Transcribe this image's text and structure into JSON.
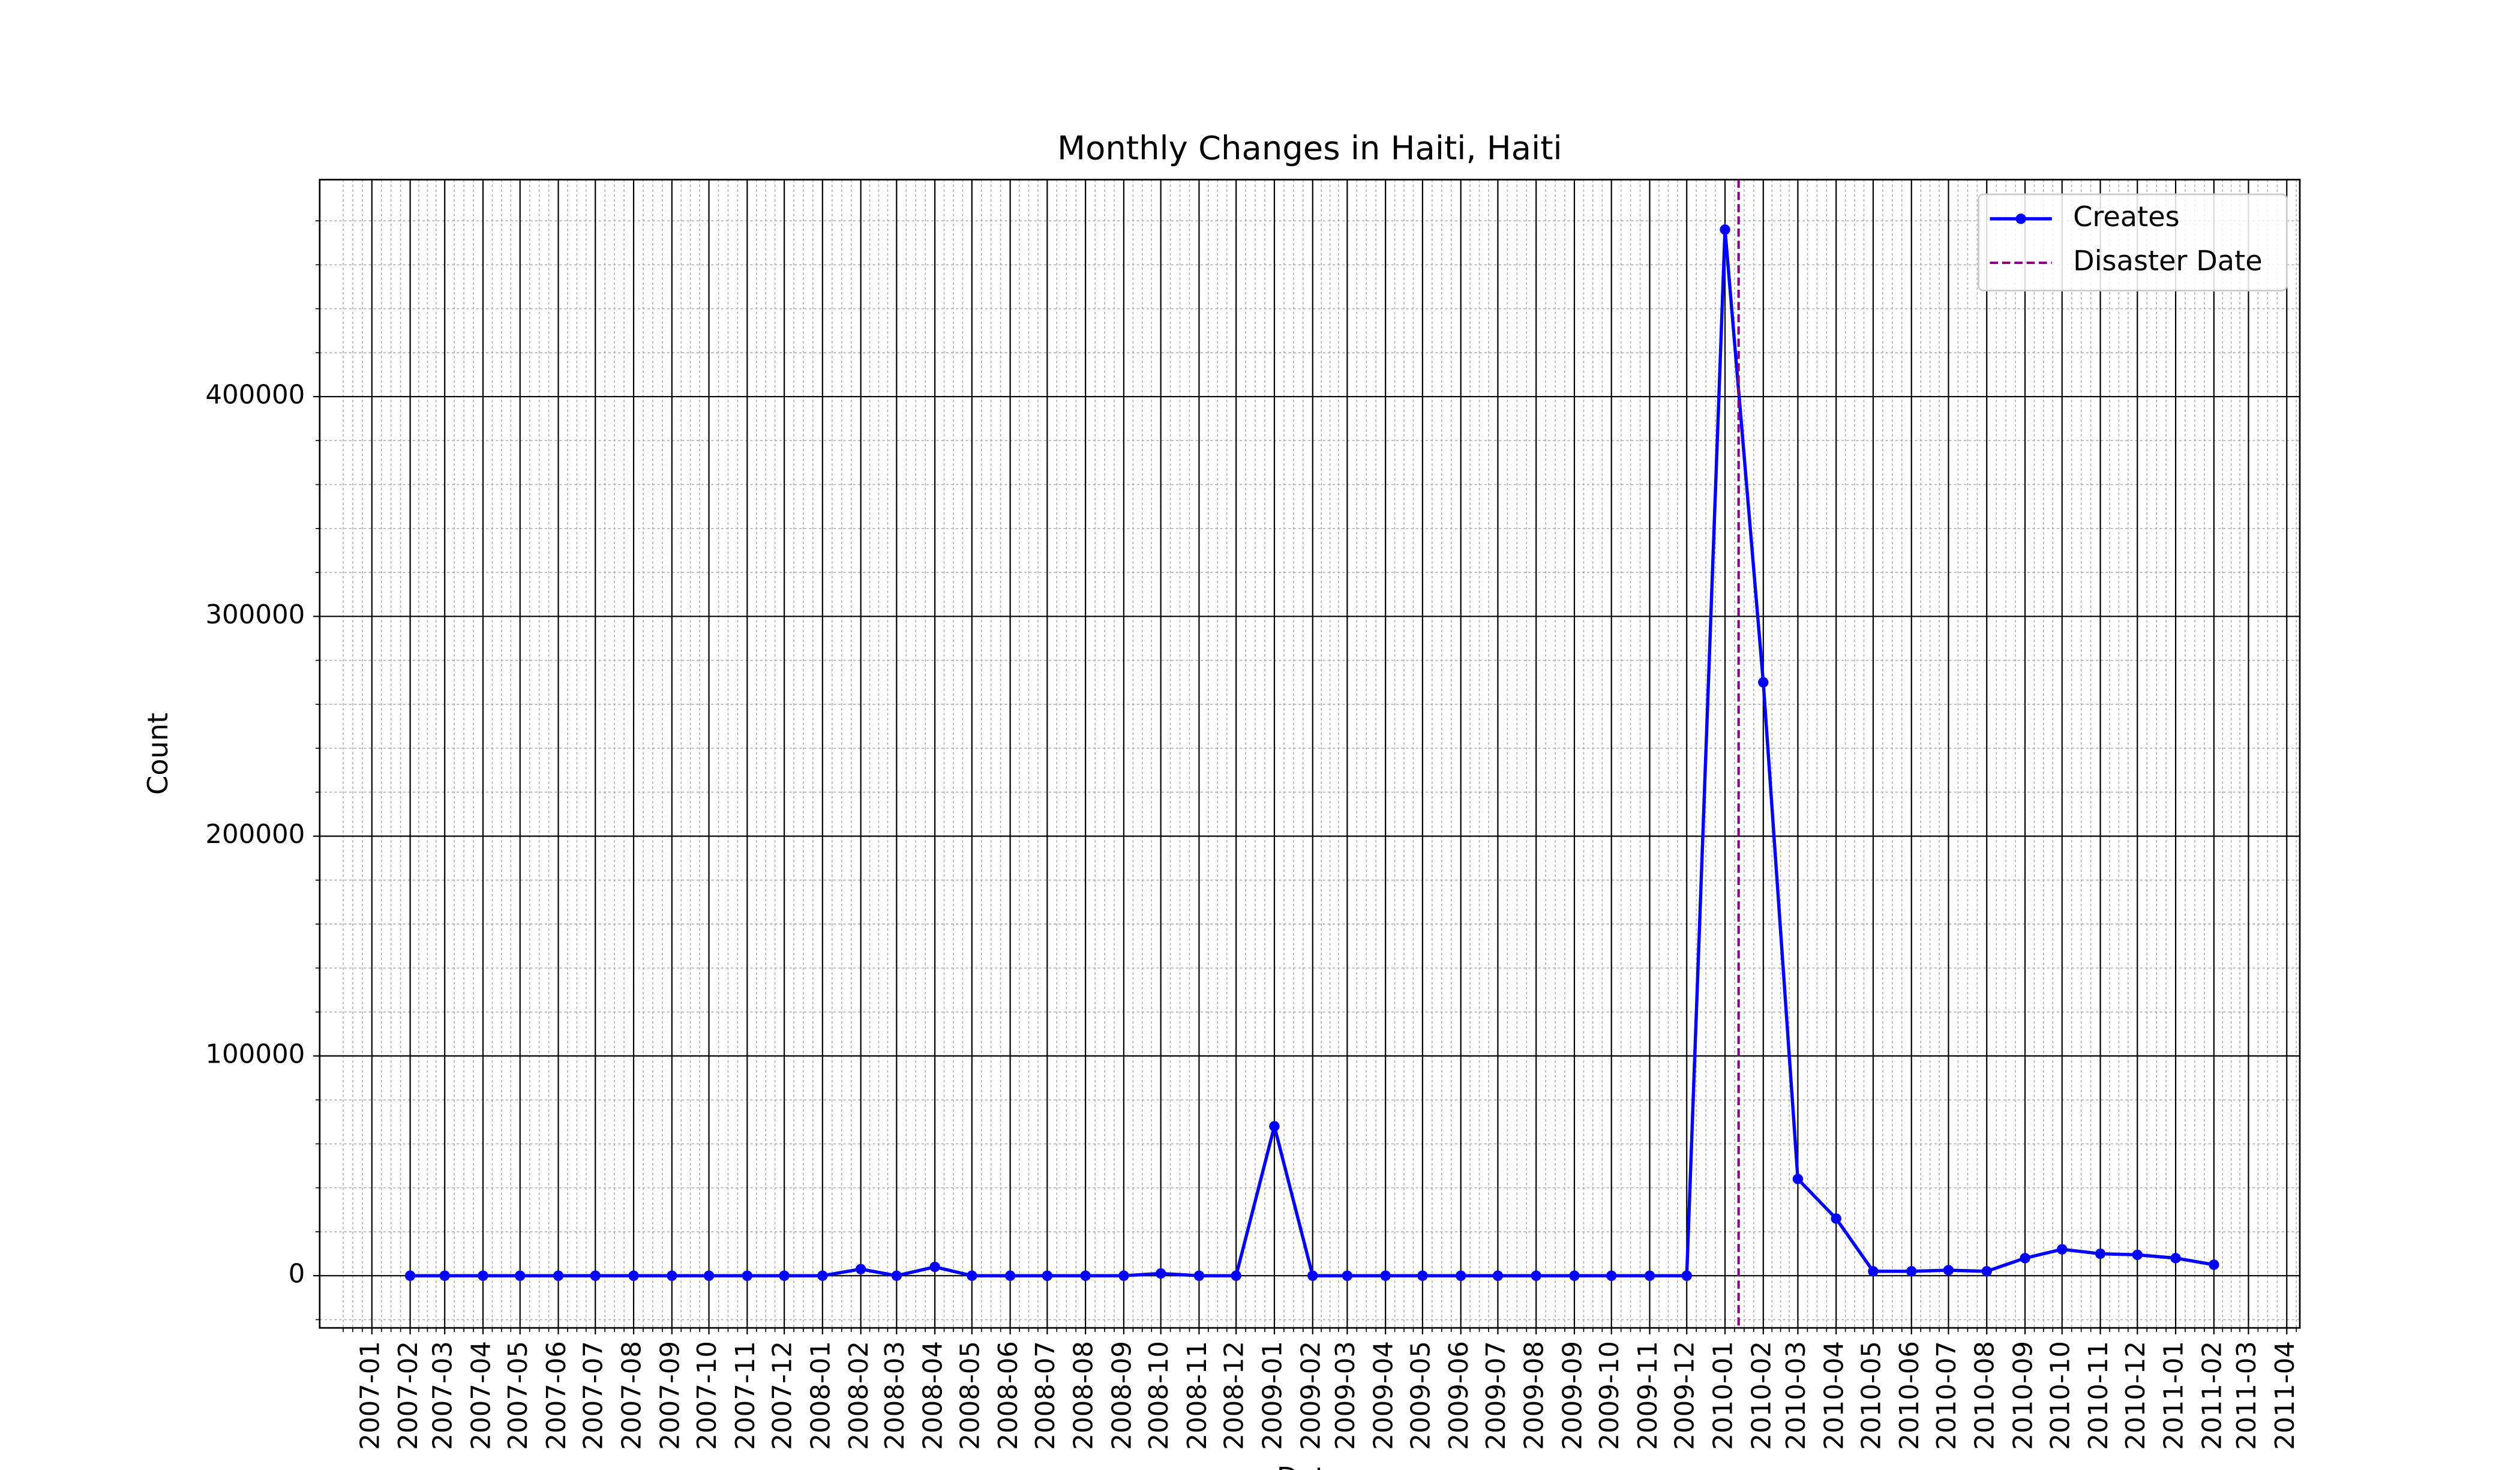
{
  "chart_data": {
    "type": "line",
    "title": "Monthly Changes in Haiti, Haiti",
    "x_label": "Date",
    "y_label": "Count",
    "x": [
      "2007-02",
      "2007-03",
      "2007-04",
      "2007-05",
      "2007-06",
      "2007-07",
      "2007-08",
      "2007-09",
      "2007-10",
      "2007-11",
      "2007-12",
      "2008-01",
      "2008-02",
      "2008-03",
      "2008-04",
      "2008-05",
      "2008-06",
      "2008-07",
      "2008-08",
      "2008-09",
      "2008-10",
      "2008-11",
      "2008-12",
      "2009-01",
      "2009-02",
      "2009-03",
      "2009-04",
      "2009-05",
      "2009-06",
      "2009-07",
      "2009-08",
      "2009-09",
      "2009-10",
      "2009-11",
      "2009-12",
      "2010-01",
      "2010-02",
      "2010-03",
      "2010-04",
      "2010-05",
      "2010-06",
      "2010-07",
      "2010-08",
      "2010-09",
      "2010-10",
      "2010-11",
      "2010-12",
      "2011-01",
      "2011-02"
    ],
    "series": [
      {
        "name": "Creates",
        "color": "#0000ff",
        "values": [
          0,
          0,
          0,
          0,
          0,
          0,
          0,
          0,
          0,
          0,
          0,
          0,
          3000,
          0,
          4000,
          0,
          0,
          0,
          0,
          0,
          1000,
          0,
          0,
          68000,
          0,
          0,
          0,
          0,
          0,
          0,
          0,
          0,
          0,
          0,
          0,
          476000,
          270000,
          44000,
          26000,
          2000,
          2000,
          2500,
          2000,
          8000,
          12000,
          10000,
          9500,
          8000,
          5000
        ]
      }
    ],
    "disaster": {
      "name": "Disaster Date",
      "date": "2010-01-12",
      "color": "#800080"
    },
    "xlim": [
      "2007-01",
      "2011-04"
    ],
    "xticks": [
      "2007-01",
      "2007-02",
      "2007-03",
      "2007-04",
      "2007-05",
      "2007-06",
      "2007-07",
      "2007-08",
      "2007-09",
      "2007-10",
      "2007-11",
      "2007-12",
      "2008-01",
      "2008-02",
      "2008-03",
      "2008-04",
      "2008-05",
      "2008-06",
      "2008-07",
      "2008-08",
      "2008-09",
      "2008-10",
      "2008-11",
      "2008-12",
      "2009-01",
      "2009-02",
      "2009-03",
      "2009-04",
      "2009-05",
      "2009-06",
      "2009-07",
      "2009-08",
      "2009-09",
      "2009-10",
      "2009-11",
      "2009-12",
      "2010-01",
      "2010-02",
      "2010-03",
      "2010-04",
      "2010-05",
      "2010-06",
      "2010-07",
      "2010-08",
      "2010-09",
      "2010-10",
      "2010-11",
      "2010-12",
      "2011-01",
      "2011-02",
      "2011-03",
      "2011-04"
    ],
    "ylim": [
      -23750,
      498750
    ],
    "yticks": [
      0,
      100000,
      200000,
      300000,
      400000
    ],
    "grid": true,
    "minor_grid": true,
    "legend": "upper right"
  }
}
